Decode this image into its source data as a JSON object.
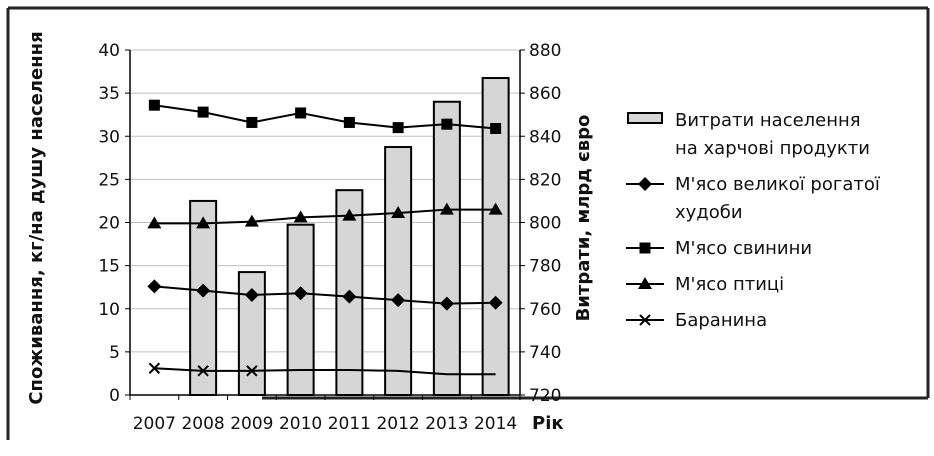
{
  "chart_data": {
    "type": "bar",
    "title": "",
    "xlabel": "Рік",
    "ylabel_left": "Споживання, кг/на душу населення",
    "ylabel_right": "Витрати, млрд євро",
    "x": [
      "2007",
      "2008",
      "2009",
      "2010",
      "2011",
      "2012",
      "2013",
      "2014"
    ],
    "ylim_left": [
      0,
      40
    ],
    "yticks_left": [
      "0",
      "5",
      "10",
      "15",
      "20",
      "25",
      "30",
      "35",
      "40"
    ],
    "ylim_right": [
      720,
      880
    ],
    "yticks_right": [
      "720",
      "740",
      "760",
      "780",
      "800",
      "820",
      "840",
      "860",
      "880"
    ],
    "grid": true,
    "legend_position": "right",
    "bar_series": {
      "name": "Витрати населення на харчові продукти",
      "axis": "right",
      "values": [
        null,
        810,
        777,
        799,
        815,
        835,
        856,
        867
      ]
    },
    "line_series": [
      {
        "name": "М'ясо великої рогатої худоби",
        "marker": "diamond",
        "axis": "left",
        "values": [
          12.6,
          12.1,
          11.6,
          11.8,
          11.4,
          11.0,
          10.6,
          10.7
        ]
      },
      {
        "name": "М'ясо свинини",
        "marker": "square",
        "axis": "left",
        "values": [
          33.6,
          32.8,
          31.6,
          32.7,
          31.6,
          31.0,
          31.4,
          30.9
        ]
      },
      {
        "name": "М'ясо птиці",
        "marker": "triangle",
        "axis": "left",
        "values": [
          19.9,
          19.9,
          20.1,
          20.6,
          20.8,
          21.1,
          21.5,
          21.5
        ]
      },
      {
        "name": "Баранина",
        "marker": "x",
        "axis": "left",
        "values": [
          3.1,
          2.8,
          2.8,
          2.9,
          2.9,
          2.8,
          2.4,
          2.4
        ]
      }
    ],
    "legend": [
      {
        "lines": [
          "Витрати населення",
          "на харчові продукти"
        ],
        "symbol": "bar"
      },
      {
        "lines": [
          "М'ясо великої рогатої",
          "худоби"
        ],
        "symbol": "diamond"
      },
      {
        "lines": [
          "М'ясо свинини"
        ],
        "symbol": "square"
      },
      {
        "lines": [
          "М'ясо птиці"
        ],
        "symbol": "triangle"
      },
      {
        "lines": [
          "Баранина"
        ],
        "symbol": "x"
      }
    ],
    "colors": {
      "bar_fill": "#d6d6d6",
      "bar_stroke": "#000000",
      "line": "#000000",
      "grid": "#bfbfbf",
      "frame": "#222222"
    }
  }
}
